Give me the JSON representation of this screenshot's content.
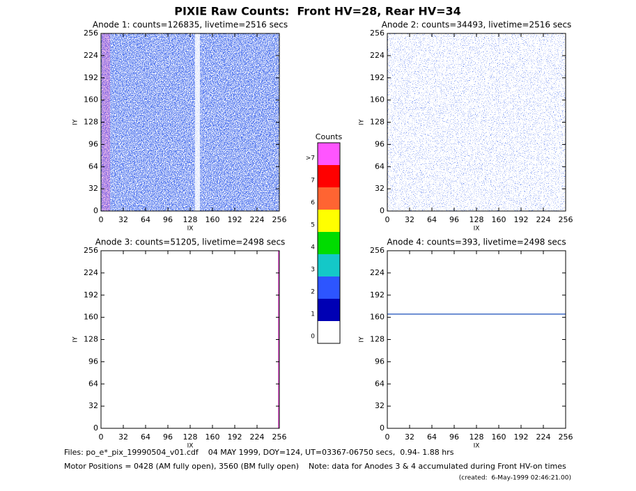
{
  "title": "PIXIE Raw Counts:  Front HV=28, Rear HV=34",
  "chart_data": [
    {
      "type": "heatmap",
      "title": "Anode 1: counts=126835, livetime=2516 secs",
      "xlabel": "IX",
      "ylabel": "IY",
      "xlim": [
        0,
        256
      ],
      "ylim": [
        0,
        256
      ],
      "xticks": [
        0,
        32,
        64,
        96,
        128,
        160,
        192,
        224,
        256
      ],
      "yticks": [
        0,
        32,
        64,
        96,
        128,
        160,
        192,
        224,
        256
      ]
    },
    {
      "type": "heatmap",
      "title": "Anode 2: counts=34493, livetime=2516 secs",
      "xlabel": "IX",
      "ylabel": "IY",
      "xlim": [
        0,
        256
      ],
      "ylim": [
        0,
        256
      ],
      "xticks": [
        0,
        32,
        64,
        96,
        128,
        160,
        192,
        224,
        256
      ],
      "yticks": [
        0,
        32,
        64,
        96,
        128,
        160,
        192,
        224,
        256
      ]
    },
    {
      "type": "heatmap",
      "title": "Anode 3: counts=51205, livetime=2498 secs",
      "xlabel": "IX",
      "ylabel": "IY",
      "xlim": [
        0,
        256
      ],
      "ylim": [
        0,
        256
      ],
      "xticks": [
        0,
        32,
        64,
        96,
        128,
        160,
        192,
        224,
        256
      ],
      "yticks": [
        0,
        32,
        64,
        96,
        128,
        160,
        192,
        224,
        256
      ]
    },
    {
      "type": "heatmap",
      "title": "Anode 4: counts=393, livetime=2498 secs",
      "xlabel": "IX",
      "ylabel": "IY",
      "xlim": [
        0,
        256
      ],
      "ylim": [
        0,
        256
      ],
      "xticks": [
        0,
        32,
        64,
        96,
        128,
        160,
        192,
        224,
        256
      ],
      "yticks": [
        0,
        32,
        64,
        96,
        128,
        160,
        192,
        224,
        256
      ]
    }
  ],
  "colorbar": {
    "title": "Counts",
    "labels": [
      "0",
      "1",
      "2",
      "3",
      "4",
      "5",
      "6",
      "7",
      ">7"
    ],
    "colors": [
      "#ffffff",
      "#0000b4",
      "#2d55ff",
      "#14c8c8",
      "#00dc00",
      "#ffff00",
      "#ff6432",
      "#ff0000",
      "#ff55ff"
    ]
  },
  "footer": {
    "files": "Files: po_e*_pix_19990504_v01.cdf    04 MAY 1999, DOY=124, UT=03367-06750 secs,  0.94- 1.88 hrs",
    "motor": "Motor Positions = 0428 (AM fully open), 3560 (BM fully open)    Note: data for Anodes 3 & 4 accumulated during Front HV-on times",
    "created": "(created:  6-May-1999 02:46:21.00)"
  }
}
